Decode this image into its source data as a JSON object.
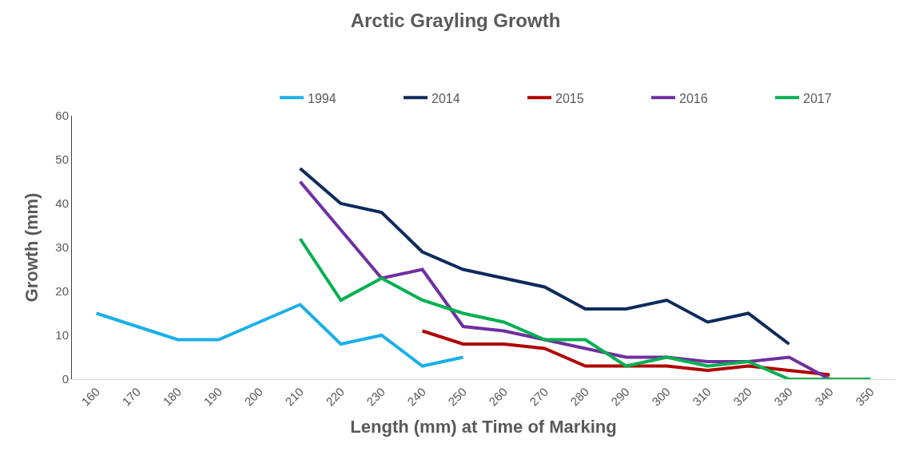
{
  "chart_data": {
    "type": "line",
    "title": "Arctic Grayling Growth",
    "xlabel": "Length (mm) at Time of Marking",
    "ylabel": "Growth (mm)",
    "categories": [
      "160",
      "170",
      "180",
      "190",
      "200",
      "210",
      "220",
      "230",
      "240",
      "250",
      "260",
      "270",
      "280",
      "290",
      "300",
      "310",
      "320",
      "330",
      "340",
      "350"
    ],
    "series": [
      {
        "name": "1994",
        "color": "#1ab0e8",
        "values": [
          15,
          12,
          9,
          9,
          13,
          17,
          8,
          10,
          3,
          5,
          null,
          null,
          null,
          null,
          null,
          null,
          null,
          null,
          null,
          null
        ]
      },
      {
        "name": "2014",
        "color": "#0d2a5c",
        "values": [
          null,
          null,
          null,
          null,
          null,
          48,
          40,
          38,
          29,
          25,
          23,
          21,
          16,
          16,
          18,
          13,
          15,
          8,
          null,
          null
        ]
      },
      {
        "name": "2015",
        "color": "#b00000",
        "values": [
          null,
          null,
          null,
          null,
          null,
          null,
          null,
          null,
          11,
          8,
          8,
          7,
          3,
          3,
          3,
          2,
          3,
          2,
          1,
          null
        ]
      },
      {
        "name": "2016",
        "color": "#7030a0",
        "values": [
          null,
          null,
          null,
          null,
          null,
          45,
          34,
          23,
          25,
          12,
          11,
          9,
          7,
          5,
          5,
          4,
          4,
          5,
          0,
          null
        ]
      },
      {
        "name": "2017",
        "color": "#00b050",
        "values": [
          null,
          null,
          null,
          null,
          null,
          32,
          18,
          23,
          18,
          15,
          13,
          9,
          9,
          3,
          5,
          3,
          4,
          0,
          0,
          0
        ]
      }
    ],
    "ylim": [
      0,
      60
    ],
    "yticks": [
      0,
      10,
      20,
      30,
      40,
      50,
      60
    ],
    "legend": "top right",
    "marker": "none",
    "line_style": "solid"
  }
}
